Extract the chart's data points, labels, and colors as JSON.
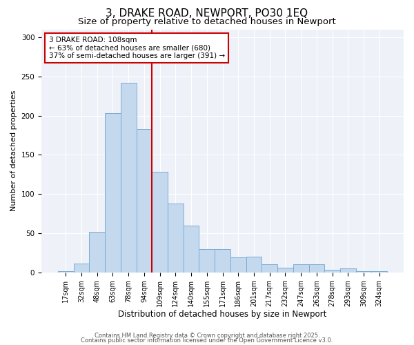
{
  "title": "3, DRAKE ROAD, NEWPORT, PO30 1EQ",
  "subtitle": "Size of property relative to detached houses in Newport",
  "xlabel": "Distribution of detached houses by size in Newport",
  "ylabel": "Number of detached properties",
  "categories": [
    "17sqm",
    "32sqm",
    "48sqm",
    "63sqm",
    "78sqm",
    "94sqm",
    "109sqm",
    "124sqm",
    "140sqm",
    "155sqm",
    "171sqm",
    "186sqm",
    "201sqm",
    "217sqm",
    "232sqm",
    "247sqm",
    "263sqm",
    "278sqm",
    "293sqm",
    "309sqm",
    "324sqm"
  ],
  "values": [
    2,
    11,
    52,
    203,
    242,
    183,
    128,
    88,
    60,
    30,
    30,
    19,
    20,
    10,
    6,
    10,
    10,
    3,
    5,
    2,
    2
  ],
  "bar_color": "#c5d9ee",
  "bar_edge_color": "#7aaad4",
  "vline_x_index": 6,
  "vline_color": "#cc0000",
  "annotation_text": "3 DRAKE ROAD: 108sqm\n← 63% of detached houses are smaller (680)\n37% of semi-detached houses are larger (391) →",
  "annotation_box_color": "#cc0000",
  "ylim": [
    0,
    310
  ],
  "yticks": [
    0,
    50,
    100,
    150,
    200,
    250,
    300
  ],
  "background_color": "#eef2f8",
  "footer_line1": "Contains HM Land Registry data © Crown copyright and database right 2025.",
  "footer_line2": "Contains public sector information licensed under the Open Government Licence v3.0.",
  "title_fontsize": 11,
  "subtitle_fontsize": 9.5,
  "tick_fontsize": 7,
  "ylabel_fontsize": 8,
  "xlabel_fontsize": 8.5,
  "footer_fontsize": 6
}
